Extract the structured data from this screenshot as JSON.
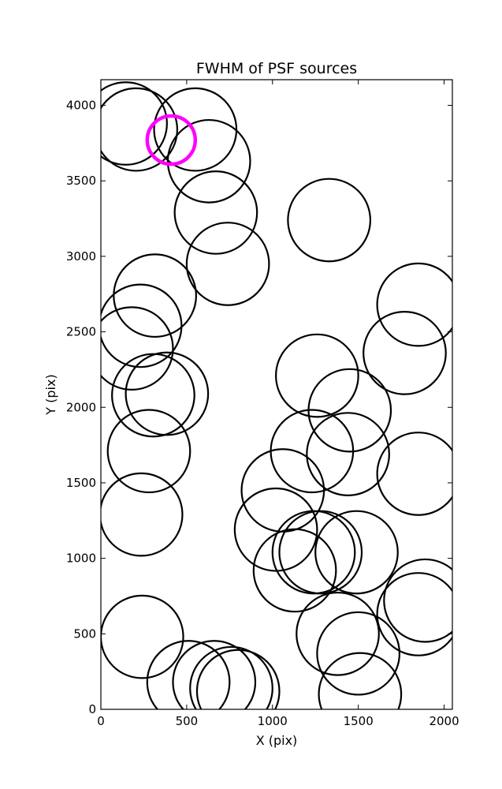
{
  "chart_data": {
    "type": "scatter",
    "title": "FWHM of PSF sources",
    "xlabel": "X (pix)",
    "ylabel": "Y (pix)",
    "xlim": [
      0,
      2048
    ],
    "ylim": [
      0,
      4170
    ],
    "xticks": [
      0,
      500,
      1000,
      1500,
      2000
    ],
    "yticks": [
      0,
      500,
      1000,
      1500,
      2000,
      2500,
      3000,
      3500,
      4000
    ],
    "grid": false,
    "legend": "none",
    "colors": {
      "sources": "#000000",
      "highlight": "#ff00ff"
    },
    "series": [
      {
        "marker": "circle",
        "color": "#000000",
        "points": [
          {
            "x": 145,
            "y": 3880,
            "r": 240
          },
          {
            "x": 205,
            "y": 3840,
            "r": 240
          },
          {
            "x": 550,
            "y": 3840,
            "r": 240
          },
          {
            "x": 630,
            "y": 3630,
            "r": 240
          },
          {
            "x": 670,
            "y": 3290,
            "r": 240
          },
          {
            "x": 740,
            "y": 2950,
            "r": 240
          },
          {
            "x": 1330,
            "y": 3240,
            "r": 240
          },
          {
            "x": 1850,
            "y": 2680,
            "r": 240
          },
          {
            "x": 1770,
            "y": 2360,
            "r": 240
          },
          {
            "x": 315,
            "y": 2740,
            "r": 240
          },
          {
            "x": 230,
            "y": 2540,
            "r": 240
          },
          {
            "x": 180,
            "y": 2390,
            "r": 240
          },
          {
            "x": 385,
            "y": 2090,
            "r": 240
          },
          {
            "x": 305,
            "y": 2080,
            "r": 240
          },
          {
            "x": 1260,
            "y": 2210,
            "r": 240
          },
          {
            "x": 1450,
            "y": 1980,
            "r": 240
          },
          {
            "x": 280,
            "y": 1710,
            "r": 240
          },
          {
            "x": 1230,
            "y": 1710,
            "r": 240
          },
          {
            "x": 1440,
            "y": 1690,
            "r": 240
          },
          {
            "x": 1850,
            "y": 1560,
            "r": 240
          },
          {
            "x": 1060,
            "y": 1450,
            "r": 240
          },
          {
            "x": 235,
            "y": 1290,
            "r": 240
          },
          {
            "x": 1020,
            "y": 1190,
            "r": 240
          },
          {
            "x": 1240,
            "y": 1040,
            "r": 240
          },
          {
            "x": 1280,
            "y": 1040,
            "r": 240
          },
          {
            "x": 1490,
            "y": 1040,
            "r": 240
          },
          {
            "x": 1130,
            "y": 920,
            "r": 240
          },
          {
            "x": 1890,
            "y": 720,
            "r": 240
          },
          {
            "x": 1850,
            "y": 630,
            "r": 240
          },
          {
            "x": 240,
            "y": 480,
            "r": 240
          },
          {
            "x": 1380,
            "y": 500,
            "r": 240
          },
          {
            "x": 1500,
            "y": 370,
            "r": 240
          },
          {
            "x": 510,
            "y": 180,
            "r": 240
          },
          {
            "x": 660,
            "y": 180,
            "r": 240
          },
          {
            "x": 760,
            "y": 140,
            "r": 240
          },
          {
            "x": 800,
            "y": 120,
            "r": 240
          },
          {
            "x": 1510,
            "y": 100,
            "r": 240
          }
        ]
      },
      {
        "marker": "circle",
        "color": "#ff00ff",
        "points": [
          {
            "x": 410,
            "y": 3770,
            "r": 140
          }
        ]
      }
    ]
  }
}
